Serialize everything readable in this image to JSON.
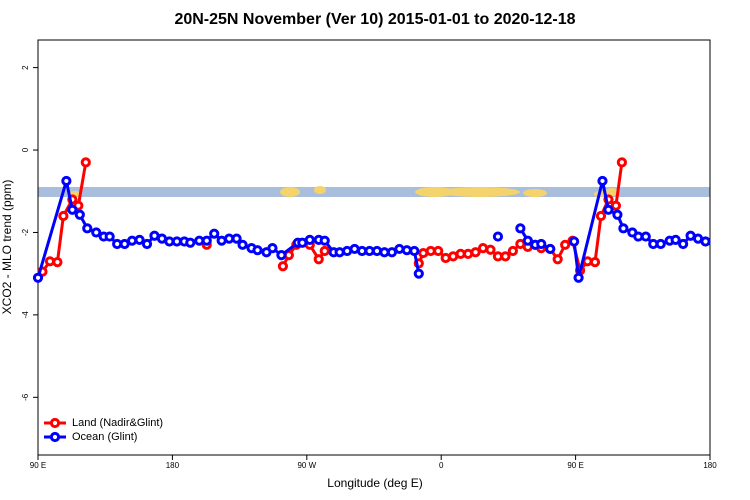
{
  "chart_data": {
    "type": "line",
    "title": "20N-25N November (Ver 10)   2015-01-01 to 2020-12-18",
    "xlabel": "Longitude (deg E)",
    "ylabel": "XCO2 - MLO trend (ppm)",
    "xlim": [
      90,
      540
    ],
    "ylim": [
      -7.4,
      2.67
    ],
    "xticks": [
      {
        "value": 90,
        "label": "90 E"
      },
      180,
      {
        "value": 270,
        "label": "90 W"
      },
      {
        "value": 360,
        "label": "0"
      },
      {
        "value": 450,
        "label": "90 E"
      },
      {
        "value": 540,
        "label": "180"
      }
    ],
    "yticks": [
      2,
      0,
      -2,
      -4,
      -6
    ],
    "legend": "bottom-left",
    "series": [
      {
        "name": "Land (Nadir&Glint)",
        "color": "#ff0000",
        "x": [
          93,
          98,
          103,
          107,
          113,
          117,
          122,
          null,
          203,
          null,
          254,
          258,
          263,
          272,
          278,
          282,
          null,
          345,
          348,
          353,
          358,
          363,
          368,
          373,
          378,
          383,
          388,
          393,
          398,
          403,
          408,
          413,
          418,
          423,
          427,
          433,
          438,
          443,
          448,
          453,
          458,
          463,
          467,
          472,
          477,
          481
        ],
        "values": [
          -2.95,
          -2.7,
          -2.72,
          -1.6,
          -1.2,
          -1.35,
          -0.3,
          null,
          -2.3,
          null,
          -2.82,
          -2.55,
          -2.3,
          -2.3,
          -2.65,
          -2.45,
          null,
          -2.75,
          -2.5,
          -2.45,
          -2.45,
          -2.62,
          -2.58,
          -2.52,
          -2.52,
          -2.48,
          -2.38,
          -2.42,
          -2.58,
          -2.58,
          -2.45,
          -2.28,
          -2.35,
          -2.3,
          -2.38,
          -2.4,
          -2.65,
          -2.3,
          -2.2,
          -2.92,
          -2.7,
          -2.72,
          -1.6,
          -1.2,
          -1.35,
          -0.3
        ]
      },
      {
        "name": "Ocean (Glint)",
        "color": "#0000ff",
        "x": [
          90,
          109,
          113,
          118,
          123,
          129,
          134,
          138,
          143,
          148,
          153,
          158,
          163,
          168,
          173,
          178,
          183,
          188,
          192,
          198,
          203,
          208,
          213,
          218,
          223,
          227,
          233,
          237,
          243,
          247,
          253,
          264,
          267,
          272,
          278,
          282,
          288,
          292,
          297,
          302,
          307,
          312,
          317,
          322,
          327,
          332,
          337,
          342,
          345,
          null,
          398,
          null,
          413,
          418,
          423,
          427,
          433,
          null,
          449,
          452,
          468,
          472,
          478,
          482,
          488,
          492,
          497,
          502,
          507,
          513,
          517,
          522,
          527,
          532,
          537
        ],
        "values": [
          -3.1,
          -0.75,
          -1.45,
          -1.57,
          -1.9,
          -2.0,
          -2.1,
          -2.1,
          -2.28,
          -2.28,
          -2.2,
          -2.18,
          -2.28,
          -2.08,
          -2.15,
          -2.22,
          -2.22,
          -2.22,
          -2.25,
          -2.2,
          -2.2,
          -2.03,
          -2.2,
          -2.15,
          -2.15,
          -2.3,
          -2.38,
          -2.43,
          -2.48,
          -2.38,
          -2.55,
          -2.25,
          -2.25,
          -2.18,
          -2.18,
          -2.2,
          -2.48,
          -2.48,
          -2.45,
          -2.4,
          -2.45,
          -2.45,
          -2.45,
          -2.48,
          -2.48,
          -2.4,
          -2.43,
          -2.45,
          -3.0,
          null,
          -2.1,
          null,
          -1.9,
          -2.2,
          -2.3,
          -2.28,
          -2.4,
          null,
          -2.22,
          -3.1,
          -0.75,
          -1.45,
          -1.57,
          -1.9,
          -2.0,
          -2.1,
          -2.1,
          -2.28,
          -2.28,
          -2.2,
          -2.18,
          -2.28,
          -2.08,
          -2.15,
          -2.22
        ]
      }
    ]
  }
}
